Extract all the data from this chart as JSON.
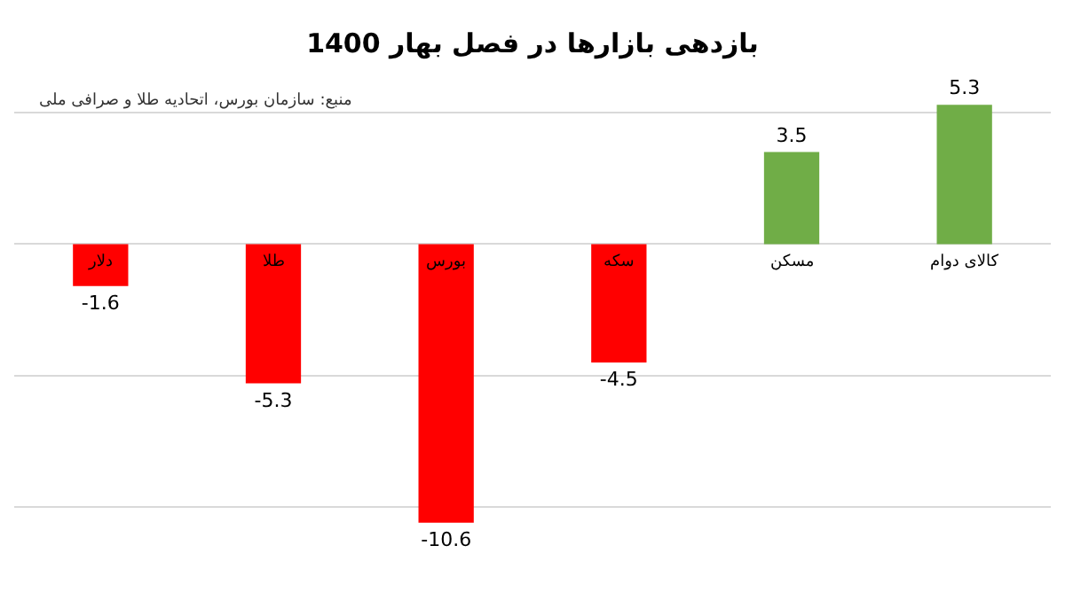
{
  "chart_data": {
    "type": "bar",
    "title": "بازدهی بازارها در فصل بهار 1400",
    "annotations": [
      "منبع: سازمان بورس، اتحادیه طلا و صرافی ملی"
    ],
    "categories": [
      "دلار",
      "طلا",
      "بورس",
      "سکه",
      "مسکن",
      "کالای دوام"
    ],
    "values": [
      -1.6,
      -5.3,
      -10.6,
      -4.5,
      3.5,
      5.3
    ],
    "colors": [
      "#ff0000",
      "#ff0000",
      "#ff0000",
      "#ff0000",
      "#70ad47",
      "#70ad47"
    ],
    "grid": "y",
    "tick_labels": false,
    "data_labels": true
  }
}
